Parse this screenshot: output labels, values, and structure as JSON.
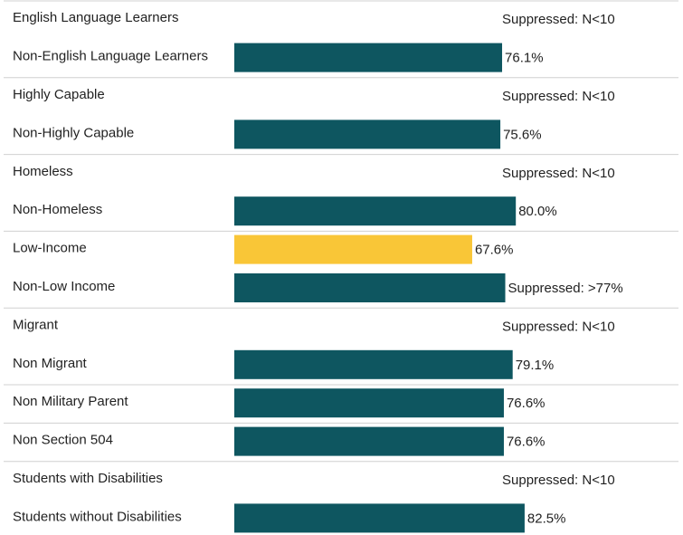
{
  "chart_data": {
    "type": "bar",
    "orientation": "horizontal",
    "categories": [
      "English Language Learners",
      "Non-English Language Learners",
      "Highly Capable",
      "Non-Highly Capable",
      "Homeless",
      "Non-Homeless",
      "Low-Income",
      "Non-Low Income",
      "Migrant",
      "Non Migrant",
      "Non Military Parent",
      "Non Section 504",
      "Students with Disabilities",
      "Students without Disabilities"
    ],
    "values": [
      null,
      76.1,
      null,
      75.6,
      null,
      80.0,
      67.6,
      77,
      null,
      79.1,
      76.6,
      76.6,
      null,
      82.5
    ],
    "value_labels": [
      "Suppressed: N<10",
      "76.1%",
      "Suppressed: N<10",
      "75.6%",
      "Suppressed: N<10",
      "80.0%",
      "67.6%",
      "Suppressed: >77%",
      "Suppressed: N<10",
      "79.1%",
      "76.6%",
      "76.6%",
      "Suppressed: N<10",
      "82.5%"
    ],
    "colors": [
      "#0e5660",
      "#0e5660",
      "#0e5660",
      "#0e5660",
      "#0e5660",
      "#0e5660",
      "#f9c637",
      "#0e5660",
      "#0e5660",
      "#0e5660",
      "#0e5660",
      "#0e5660",
      "#0e5660",
      "#0e5660"
    ],
    "xlim": [
      0,
      100
    ]
  }
}
